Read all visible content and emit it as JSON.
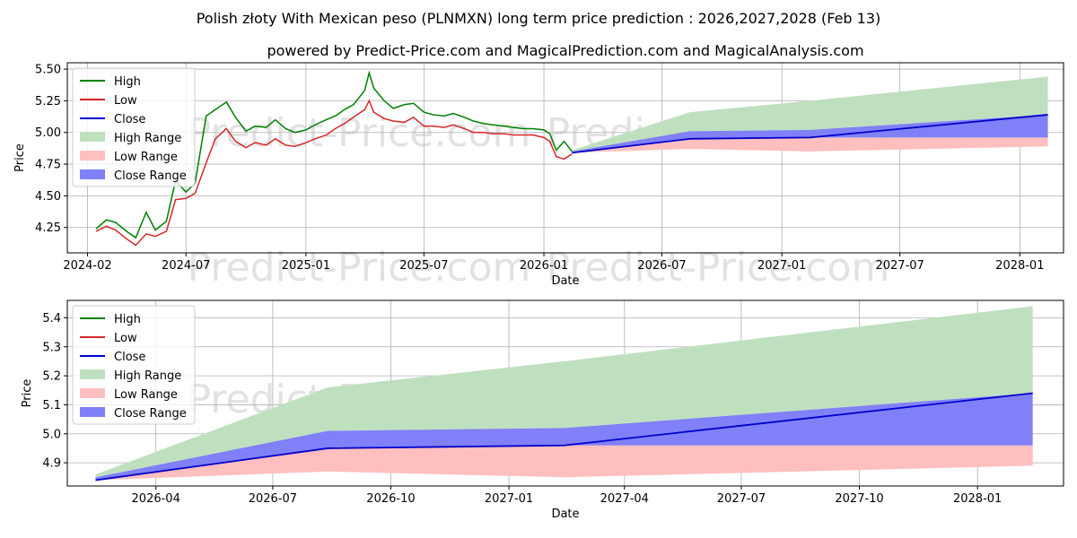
{
  "title": "Polish złoty With Mexican peso (PLNMXN) long term price prediction : 2026,2027,2028 (Feb 13)",
  "subtitle": "powered by Predict-Price.com and MagicalPrediction.com and MagicalAnalysis.com",
  "watermark": "Predict-Price.com",
  "colors": {
    "high": "#008000",
    "low": "#d62728",
    "close": "#0000cc",
    "high_range": "#bfe0bf",
    "low_range": "#ffbfbf",
    "close_range": "#8080f8"
  },
  "chart_data": [
    {
      "type": "line",
      "name": "top-chart",
      "xlabel": "Date",
      "ylabel": "Price",
      "ylim": [
        4.05,
        5.55
      ],
      "xlim": [
        "2024-01-01",
        "2028-03-08"
      ],
      "x_ticks": [
        {
          "date": "2024-02-01",
          "label": "2024-02"
        },
        {
          "date": "2024-07-01",
          "label": "2024-07"
        },
        {
          "date": "2025-01-01",
          "label": "2025-01"
        },
        {
          "date": "2025-07-01",
          "label": "2025-07"
        },
        {
          "date": "2026-01-01",
          "label": "2026-01"
        },
        {
          "date": "2026-07-01",
          "label": "2026-07"
        },
        {
          "date": "2027-01-01",
          "label": "2027-01"
        },
        {
          "date": "2027-07-01",
          "label": "2027-07"
        },
        {
          "date": "2028-01-01",
          "label": "2028-01"
        }
      ],
      "y_ticks": [
        4.25,
        4.5,
        4.75,
        5.0,
        5.25,
        5.5
      ],
      "legend": [
        "High",
        "Low",
        "Close",
        "High Range",
        "Low Range",
        "Close Range"
      ],
      "legend_position": "upper-left",
      "history": {
        "dates": [
          "2024-02-14",
          "2024-03-01",
          "2024-03-15",
          "2024-04-01",
          "2024-04-15",
          "2024-05-01",
          "2024-05-15",
          "2024-06-01",
          "2024-06-15",
          "2024-07-01",
          "2024-07-15",
          "2024-08-01",
          "2024-08-15",
          "2024-09-01",
          "2024-09-15",
          "2024-10-01",
          "2024-10-15",
          "2024-11-01",
          "2024-11-15",
          "2024-12-01",
          "2024-12-15",
          "2025-01-01",
          "2025-01-15",
          "2025-02-01",
          "2025-02-15",
          "2025-03-01",
          "2025-03-15",
          "2025-04-01",
          "2025-04-08",
          "2025-04-15",
          "2025-05-01",
          "2025-05-15",
          "2025-06-01",
          "2025-06-15",
          "2025-07-01",
          "2025-07-15",
          "2025-08-01",
          "2025-08-15",
          "2025-09-01",
          "2025-09-15",
          "2025-10-01",
          "2025-10-15",
          "2025-11-01",
          "2025-11-15",
          "2025-12-01",
          "2025-12-15",
          "2026-01-01",
          "2026-01-10",
          "2026-01-20",
          "2026-02-01",
          "2026-02-13"
        ],
        "high": [
          4.24,
          4.31,
          4.29,
          4.22,
          4.17,
          4.37,
          4.23,
          4.3,
          4.62,
          4.53,
          4.6,
          5.13,
          5.18,
          5.24,
          5.12,
          5.01,
          5.05,
          5.04,
          5.1,
          5.03,
          5.0,
          5.02,
          5.06,
          5.1,
          5.13,
          5.18,
          5.22,
          5.33,
          5.47,
          5.35,
          5.25,
          5.19,
          5.22,
          5.23,
          5.16,
          5.14,
          5.13,
          5.15,
          5.12,
          5.09,
          5.07,
          5.06,
          5.05,
          5.04,
          5.03,
          5.03,
          5.02,
          4.99,
          4.86,
          4.93,
          4.85
        ],
        "low": [
          4.22,
          4.26,
          4.23,
          4.16,
          4.11,
          4.2,
          4.18,
          4.22,
          4.47,
          4.48,
          4.52,
          4.76,
          4.95,
          5.03,
          4.93,
          4.88,
          4.92,
          4.9,
          4.95,
          4.9,
          4.89,
          4.92,
          4.95,
          4.98,
          5.03,
          5.07,
          5.12,
          5.18,
          5.25,
          5.16,
          5.11,
          5.09,
          5.08,
          5.12,
          5.05,
          5.05,
          5.04,
          5.06,
          5.03,
          5.0,
          5.0,
          4.99,
          4.99,
          4.98,
          4.98,
          4.98,
          4.96,
          4.93,
          4.81,
          4.79,
          4.83
        ],
        "close": [
          4.23,
          4.28,
          4.25,
          4.19,
          4.14,
          4.25,
          4.2,
          4.26,
          4.55,
          4.5,
          4.56,
          4.95,
          5.05,
          5.12,
          5.02,
          4.95,
          4.98,
          4.96,
          5.02,
          4.96,
          4.94,
          4.97,
          5.0,
          5.04,
          5.08,
          5.12,
          5.17,
          5.25,
          5.33,
          5.25,
          5.18,
          5.14,
          5.15,
          5.17,
          5.1,
          5.09,
          5.08,
          5.1,
          5.07,
          5.04,
          5.03,
          5.02,
          5.02,
          5.01,
          5.0,
          5.0,
          4.99,
          4.96,
          4.83,
          4.86,
          4.84
        ]
      }
    },
    {
      "type": "line",
      "name": "bottom-chart",
      "xlabel": "Date",
      "ylabel": "Price",
      "ylim": [
        4.82,
        5.46
      ],
      "xlim": [
        "2026-01-22",
        "2028-03-08"
      ],
      "x_ticks": [
        {
          "date": "2026-04-01",
          "label": "2026-04"
        },
        {
          "date": "2026-07-01",
          "label": "2026-07"
        },
        {
          "date": "2026-10-01",
          "label": "2026-10"
        },
        {
          "date": "2027-01-01",
          "label": "2027-01"
        },
        {
          "date": "2027-04-01",
          "label": "2027-04"
        },
        {
          "date": "2027-07-01",
          "label": "2027-07"
        },
        {
          "date": "2027-10-01",
          "label": "2027-10"
        },
        {
          "date": "2028-01-01",
          "label": "2028-01"
        }
      ],
      "y_ticks": [
        4.9,
        5.0,
        5.1,
        5.2,
        5.3,
        5.4
      ],
      "legend": [
        "High",
        "Low",
        "Close",
        "High Range",
        "Low Range",
        "Close Range"
      ],
      "legend_position": "upper-left"
    }
  ],
  "forecast": {
    "dates": [
      "2026-02-13",
      "2026-08-13",
      "2027-02-13",
      "2028-02-13"
    ],
    "close": [
      4.84,
      4.95,
      4.96,
      5.14
    ],
    "high_range_upper": [
      4.86,
      5.16,
      5.25,
      5.44
    ],
    "low_range_lower": [
      4.84,
      4.87,
      4.85,
      4.89
    ],
    "close_range_upper": [
      4.85,
      5.01,
      5.02,
      5.14
    ],
    "close_range_lower": [
      4.84,
      4.95,
      4.96,
      4.96
    ]
  }
}
